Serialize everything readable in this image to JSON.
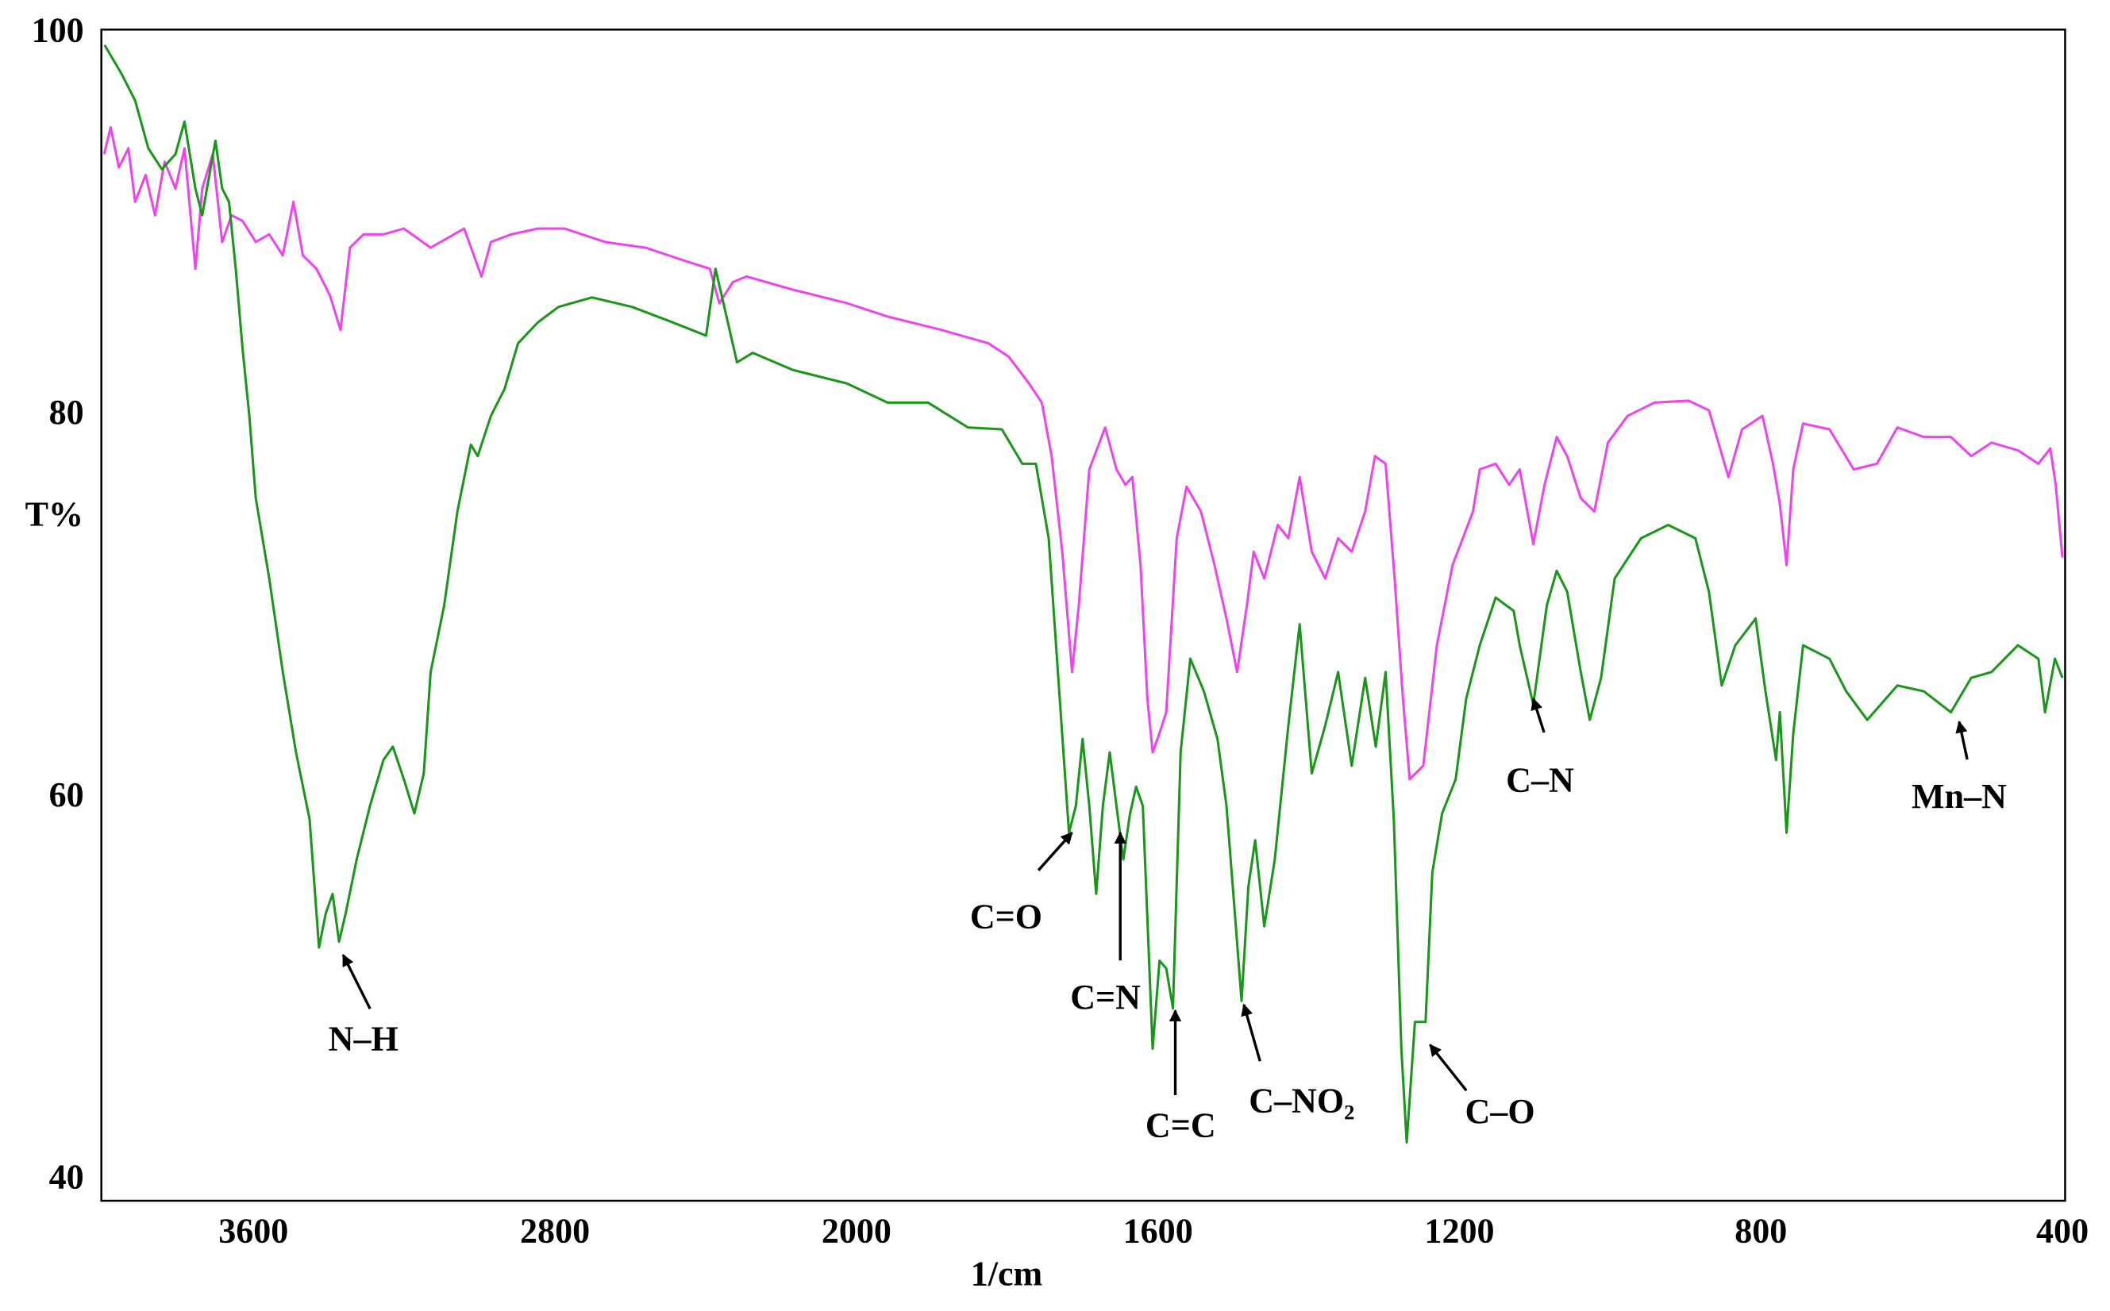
{
  "chart_data": {
    "type": "line",
    "x_label": "1/cm",
    "y_label": "T%",
    "xlim": [
      4000,
      400
    ],
    "xticks": [
      3600,
      2800,
      2000,
      1600,
      1200,
      800,
      400
    ],
    "ylim": [
      40,
      100
    ],
    "yticks": [
      40,
      60,
      80,
      100
    ],
    "grid": false,
    "series": [
      {
        "color": "#ee44ee",
        "x": [
          3996,
          3979,
          3957,
          3932,
          3914,
          3886,
          3861,
          3836,
          3807,
          3783,
          3754,
          3736,
          3708,
          3683,
          3658,
          3629,
          3594,
          3558,
          3522,
          3494,
          3469,
          3433,
          3397,
          3369,
          3344,
          3308,
          3255,
          3201,
          3130,
          3041,
          2995,
          2970,
          2916,
          2845,
          2774,
          2667,
          2560,
          2453,
          2389,
          2364,
          2328,
          2292,
          2168,
          2025,
          1959,
          1887,
          1825,
          1798,
          1771,
          1754,
          1741,
          1727,
          1714,
          1705,
          1691,
          1670,
          1655,
          1643,
          1634,
          1623,
          1614,
          1607,
          1598,
          1589,
          1575,
          1562,
          1543,
          1525,
          1509,
          1495,
          1482,
          1473,
          1459,
          1441,
          1427,
          1412,
          1396,
          1378,
          1361,
          1343,
          1325,
          1312,
          1298,
          1286,
          1275,
          1266,
          1248,
          1230,
          1209,
          1182,
          1173,
          1152,
          1134,
          1120,
          1102,
          1087,
          1071,
          1057,
          1039,
          1021,
          1003,
          977,
          941,
          896,
          869,
          843,
          825,
          798,
          784,
          775,
          766,
          757,
          744,
          709,
          677,
          646,
          619,
          584,
          548,
          521,
          494,
          459,
          432,
          416,
          409,
          400
        ],
        "values": [
          93.7,
          95.1,
          93.0,
          94.0,
          91.2,
          92.6,
          90.5,
          93.3,
          91.9,
          94.0,
          87.7,
          91.9,
          93.7,
          89.1,
          90.5,
          90.2,
          89.1,
          89.5,
          88.4,
          91.2,
          88.4,
          87.7,
          86.3,
          84.5,
          88.8,
          89.5,
          89.5,
          89.8,
          88.8,
          89.8,
          87.3,
          89.1,
          89.5,
          89.8,
          89.8,
          89.1,
          88.8,
          88.1,
          87.7,
          85.9,
          87.0,
          87.3,
          86.6,
          85.9,
          85.2,
          84.5,
          83.8,
          83.1,
          81.7,
          80.7,
          77.9,
          72.9,
          66.6,
          70.1,
          77.2,
          79.4,
          77.2,
          76.4,
          76.8,
          72.2,
          65.2,
          62.4,
          63.4,
          64.5,
          73.6,
          76.3,
          75.0,
          72.2,
          69.4,
          66.6,
          70.1,
          72.9,
          71.5,
          74.3,
          73.6,
          76.8,
          72.9,
          71.5,
          73.6,
          72.9,
          75.0,
          77.9,
          77.5,
          71.5,
          65.2,
          61.0,
          61.7,
          68.0,
          72.2,
          75.0,
          77.2,
          77.5,
          76.4,
          77.2,
          73.3,
          76.4,
          78.9,
          77.9,
          75.7,
          75.0,
          78.6,
          80.0,
          80.7,
          80.8,
          80.3,
          76.8,
          79.3,
          80.0,
          77.5,
          75.4,
          72.2,
          77.2,
          79.6,
          79.3,
          77.2,
          77.5,
          79.4,
          78.9,
          78.9,
          77.9,
          78.6,
          78.2,
          77.5,
          78.3,
          76.4,
          72.6
        ]
      },
      {
        "color": "#1a961a",
        "x": [
          3995,
          3950,
          3914,
          3879,
          3843,
          3807,
          3783,
          3754,
          3736,
          3701,
          3683,
          3665,
          3647,
          3629,
          3611,
          3594,
          3558,
          3522,
          3487,
          3451,
          3426,
          3408,
          3390,
          3373,
          3355,
          3326,
          3291,
          3255,
          3230,
          3201,
          3173,
          3148,
          3130,
          3094,
          3059,
          3023,
          3005,
          2970,
          2934,
          2898,
          2845,
          2791,
          2702,
          2595,
          2488,
          2399,
          2374,
          2353,
          2317,
          2275,
          2168,
          2025,
          1959,
          1905,
          1852,
          1807,
          1780,
          1762,
          1745,
          1718,
          1709,
          1700,
          1691,
          1682,
          1673,
          1664,
          1655,
          1646,
          1637,
          1629,
          1620,
          1607,
          1598,
          1589,
          1580,
          1570,
          1557,
          1539,
          1521,
          1509,
          1498,
          1489,
          1480,
          1471,
          1459,
          1445,
          1427,
          1412,
          1396,
          1378,
          1361,
          1343,
          1325,
          1311,
          1298,
          1287,
          1277,
          1270,
          1259,
          1245,
          1236,
          1223,
          1205,
          1191,
          1173,
          1152,
          1128,
          1120,
          1102,
          1084,
          1071,
          1057,
          1039,
          1027,
          1012,
          994,
          959,
          923,
          887,
          869,
          852,
          834,
          807,
          794,
          780,
          775,
          766,
          757,
          744,
          709,
          687,
          659,
          619,
          584,
          548,
          521,
          494,
          459,
          432,
          423,
          410,
          400
        ],
        "values": [
          99.4,
          97.9,
          96.5,
          94.0,
          92.9,
          93.7,
          95.4,
          91.9,
          90.5,
          94.4,
          91.9,
          91.2,
          87.7,
          83.5,
          80.0,
          75.7,
          71.5,
          66.6,
          62.4,
          58.9,
          52.2,
          54.0,
          55.0,
          52.5,
          54.0,
          56.8,
          59.6,
          62.0,
          62.7,
          61.0,
          59.2,
          61.3,
          66.6,
          70.1,
          75.0,
          78.5,
          77.9,
          80.0,
          81.4,
          83.8,
          84.9,
          85.7,
          86.2,
          85.7,
          84.9,
          84.2,
          87.7,
          85.9,
          82.8,
          83.3,
          82.4,
          81.7,
          80.7,
          80.7,
          79.4,
          79.3,
          77.5,
          77.5,
          73.6,
          58.2,
          59.6,
          63.1,
          59.6,
          55.0,
          59.6,
          62.4,
          59.6,
          56.8,
          59.2,
          60.6,
          59.6,
          46.9,
          51.5,
          51.1,
          49.0,
          62.4,
          67.3,
          65.6,
          63.1,
          59.6,
          54.0,
          49.4,
          55.4,
          57.8,
          53.3,
          56.8,
          63.8,
          69.1,
          61.3,
          63.8,
          66.6,
          61.7,
          66.3,
          62.7,
          66.6,
          58.9,
          46.9,
          42.0,
          48.3,
          48.3,
          56.1,
          59.2,
          61.0,
          65.2,
          68.0,
          70.5,
          69.8,
          68.0,
          64.9,
          70.1,
          71.9,
          70.8,
          66.6,
          64.1,
          66.3,
          71.5,
          73.6,
          74.3,
          73.6,
          70.8,
          65.9,
          68.0,
          69.4,
          65.6,
          62.0,
          64.5,
          58.2,
          63.4,
          68.0,
          67.3,
          65.6,
          64.1,
          65.9,
          65.6,
          64.5,
          66.3,
          66.6,
          68.0,
          67.3,
          64.5,
          67.3,
          66.3
        ]
      }
    ],
    "annotations": [
      {
        "text": "N–H",
        "x": 3362,
        "y": 51.8
      },
      {
        "text": "C=O",
        "x": 1714,
        "y": 58.2
      },
      {
        "text": "C=N",
        "x": 1650,
        "y": 58.2
      },
      {
        "text": "C=C",
        "x": 1577,
        "y": 48.9
      },
      {
        "text": "C–NO₂",
        "x": 1486,
        "y": 49.2
      },
      {
        "text": "C–O",
        "x": 1239,
        "y": 47.1
      },
      {
        "text": "C–N",
        "x": 1102,
        "y": 65.2
      },
      {
        "text": "Mn–N",
        "x": 537,
        "y": 64.0
      }
    ]
  }
}
